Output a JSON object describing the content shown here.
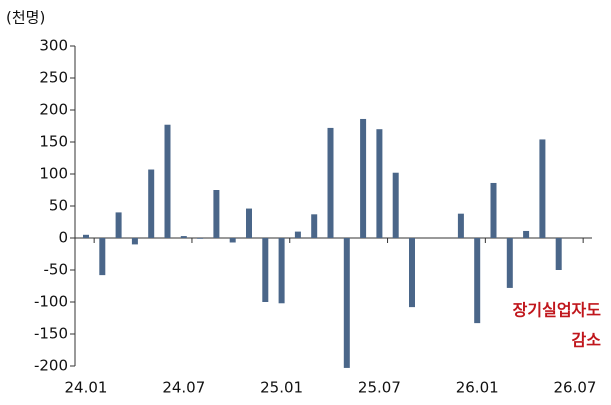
{
  "chart_data": {
    "type": "bar",
    "unit_label": "(천명)",
    "annotation": [
      "장기실업자도",
      "감소"
    ],
    "categories": [
      "24.01",
      null,
      null,
      null,
      null,
      null,
      "24.07",
      null,
      null,
      null,
      null,
      null,
      "25.01",
      null,
      null,
      null,
      null,
      null,
      "25.07",
      null,
      null,
      null,
      null,
      null,
      "26.01",
      null,
      null,
      null,
      null,
      null,
      "26.07"
    ],
    "values": [
      5,
      -58,
      40,
      -10,
      107,
      177,
      3,
      0,
      75,
      -7,
      46,
      -100,
      -102,
      10,
      37,
      172,
      -203,
      186,
      170,
      102,
      -108,
      null,
      null,
      38,
      -133,
      86,
      -78,
      11,
      154,
      -50,
      null
    ],
    "color": "#4a6689",
    "ylim": [
      -200,
      300
    ],
    "yticks": [
      -200,
      -150,
      -100,
      -50,
      0,
      50,
      100,
      150,
      200,
      250,
      300
    ],
    "grid": false
  }
}
